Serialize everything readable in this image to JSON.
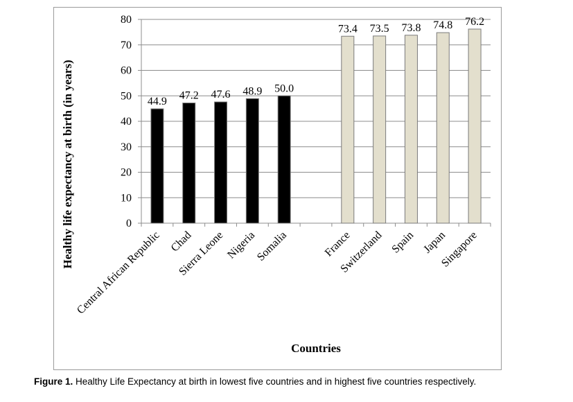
{
  "chart_data": {
    "type": "bar",
    "categories": [
      "Central African Republic",
      "Chad",
      "Sierra Leone",
      "Nigeria",
      "Somalia",
      "",
      "France",
      "Switzerland",
      "Spain",
      "Japan",
      "Singapore"
    ],
    "series": [
      {
        "values": [
          44.9,
          47.2,
          47.6,
          48.9,
          50.0,
          null,
          73.4,
          73.5,
          73.8,
          74.8,
          76.2
        ],
        "labels": [
          "44.9",
          "47.2",
          "47.6",
          "48.9",
          "50.0",
          "",
          "73.4",
          "73.5",
          "73.8",
          "74.8",
          "76.2"
        ],
        "colors": [
          "#000000",
          "#000000",
          "#000000",
          "#000000",
          "#000000",
          "",
          "#e3dfcd",
          "#e3dfcd",
          "#e3dfcd",
          "#e3dfcd",
          "#e3dfcd"
        ]
      }
    ],
    "xlabel": "Countries",
    "ylabel": "Healthy  life expectancy at birth (in years)",
    "ylim": [
      0,
      80
    ],
    "yticks": [
      "0",
      "10",
      "20",
      "30",
      "40",
      "50",
      "60",
      "70",
      "80"
    ],
    "grid": true,
    "legend": "none"
  },
  "caption": {
    "label": "Figure 1.",
    "text": " Healthy Life Expectancy at birth in lowest five countries and in highest five countries respectively."
  }
}
